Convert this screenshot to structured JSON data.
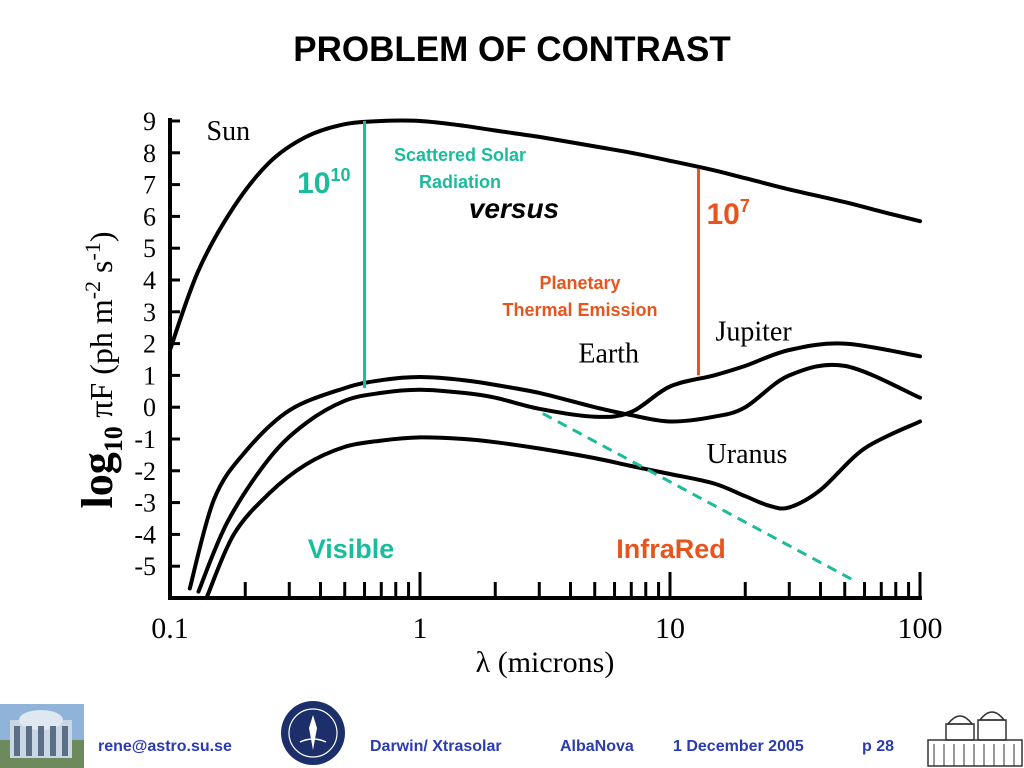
{
  "slide": {
    "title": "PROBLEM OF CONTRAST"
  },
  "chart_data": {
    "type": "line",
    "title": "",
    "xlabel": "λ (microns)",
    "ylabel_parts": {
      "prefix": "log",
      "sub": "10",
      "pi": "π",
      "main": "F (ph m",
      "sup1": "-2",
      "mid": " s",
      "sup2": "-1",
      "end": ")"
    },
    "x_scale": "log",
    "xlim": [
      0.1,
      100
    ],
    "ylim": [
      -6,
      9.3
    ],
    "x_tick_labels": [
      {
        "value": 0.1,
        "label": "0.1"
      },
      {
        "value": 1,
        "label": "1"
      },
      {
        "value": 10,
        "label": "10"
      },
      {
        "value": 100,
        "label": "100"
      }
    ],
    "y_tick_labels": [
      "9",
      "8",
      "7",
      "6",
      "5",
      "4",
      "3",
      "2",
      "1",
      "0",
      "-1",
      "-2",
      "-3",
      "-4",
      "-5"
    ],
    "y_tick_values": [
      9,
      8,
      7,
      6,
      5,
      4,
      3,
      2,
      1,
      0,
      -1,
      -2,
      -3,
      -4,
      -5
    ],
    "series": [
      {
        "name": "Sun",
        "x": [
          0.1,
          0.13,
          0.18,
          0.25,
          0.35,
          0.5,
          0.7,
          1,
          1.5,
          2,
          3,
          5,
          7,
          10,
          15,
          20,
          30,
          50,
          70,
          100
        ],
        "y": [
          1.8,
          4.3,
          6.3,
          7.7,
          8.5,
          8.9,
          9.0,
          9.0,
          8.85,
          8.7,
          8.5,
          8.2,
          8.0,
          7.75,
          7.45,
          7.2,
          6.85,
          6.45,
          6.15,
          5.85
        ]
      },
      {
        "name": "Earth",
        "x": [
          0.12,
          0.15,
          0.2,
          0.3,
          0.5,
          0.7,
          1,
          1.5,
          2,
          3,
          5,
          7,
          10,
          15,
          20,
          30,
          50,
          100
        ],
        "y": [
          -5.7,
          -2.9,
          -1.4,
          -0.1,
          0.6,
          0.85,
          0.95,
          0.85,
          0.7,
          0.45,
          0.0,
          -0.25,
          -0.45,
          -0.3,
          0.0,
          1.0,
          1.3,
          0.3
        ]
      },
      {
        "name": "Jupiter",
        "x": [
          0.13,
          0.17,
          0.25,
          0.35,
          0.5,
          0.7,
          1,
          1.5,
          2,
          3,
          5,
          7,
          10,
          15,
          20,
          30,
          50,
          100
        ],
        "y": [
          -5.8,
          -3.6,
          -1.6,
          -0.5,
          0.2,
          0.45,
          0.55,
          0.45,
          0.3,
          -0.05,
          -0.3,
          -0.15,
          0.65,
          1.0,
          1.3,
          1.8,
          2.0,
          1.6
        ]
      },
      {
        "name": "Uranus",
        "x": [
          0.14,
          0.18,
          0.25,
          0.35,
          0.5,
          0.7,
          1,
          1.5,
          2,
          3,
          5,
          7,
          10,
          15,
          20,
          25,
          30,
          40,
          60,
          100
        ],
        "y": [
          -6.0,
          -4.0,
          -2.7,
          -1.8,
          -1.25,
          -1.05,
          -0.95,
          -1.0,
          -1.1,
          -1.3,
          -1.6,
          -1.85,
          -2.1,
          -2.4,
          -2.8,
          -3.1,
          -3.15,
          -2.6,
          -1.3,
          -0.45
        ]
      }
    ],
    "series_labels": [
      {
        "name": "Sun",
        "x": 0.14,
        "y": 8.4
      },
      {
        "name": "Earth",
        "x": 4.3,
        "y": 1.4
      },
      {
        "name": "Jupiter",
        "x": 15.2,
        "y": 2.1
      },
      {
        "name": "Uranus",
        "x": 14.0,
        "y": -1.75
      }
    ],
    "dashed_line": {
      "x": [
        3.1,
        56
      ],
      "y": [
        -0.2,
        -5.5
      ],
      "color": "#1abc9c"
    },
    "contrast_bars": [
      {
        "x": 0.6,
        "y1": 0.6,
        "y2": 9.0,
        "color": "#1abc9c",
        "label": "10",
        "exponent": "10"
      },
      {
        "x": 13,
        "y1": 1.0,
        "y2": 7.5,
        "color": "#e8541e",
        "label": "10",
        "exponent": "7"
      }
    ],
    "annotations": {
      "scattered": {
        "line1": "Scattered Solar",
        "line2": "Radiation",
        "color": "#1abc9c"
      },
      "versus": "versus",
      "planetary": {
        "line1": "Planetary",
        "line2": "Thermal Emission",
        "color": "#e8541e"
      },
      "visible": {
        "text": "Visible",
        "color": "#1abc9c"
      },
      "infrared": {
        "text": "InfraRed",
        "color": "#e8541e"
      }
    },
    "grid": false
  },
  "footer": {
    "email": "rene@astro.su.se",
    "talk": "Darwin/ Xtrasolar",
    "venue": "AlbaNova",
    "date": "1 December 2005",
    "page": "p  28",
    "color": "#2b3bb0"
  }
}
